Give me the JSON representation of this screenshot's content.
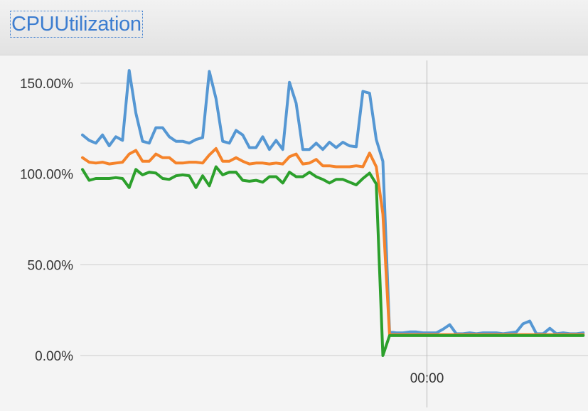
{
  "header": {
    "title": "CPUUtilization"
  },
  "colors": {
    "title_link": "#3c7dd0",
    "grid": "#cccccc",
    "background": "#f4f4f4"
  },
  "chart_data": {
    "type": "line",
    "title": "CPUUtilization",
    "xlabel": "",
    "ylabel": "",
    "ylim": [
      0,
      150
    ],
    "y_ticks": [
      {
        "value": 150,
        "label": "150.00%"
      },
      {
        "value": 100,
        "label": "100.00%"
      },
      {
        "value": 50,
        "label": "50.00%"
      },
      {
        "value": 0,
        "label": "0.00%"
      }
    ],
    "x_ticks": [
      {
        "index": 50,
        "label": "00:00"
      }
    ],
    "grid": true,
    "legend": "none",
    "x_count": 76,
    "series": [
      {
        "color": "#5597d3",
        "values": [
          121.5,
          118.5,
          117,
          121.5,
          115.5,
          120.5,
          118.5,
          157,
          133.5,
          118,
          117,
          125.5,
          125.5,
          120.5,
          118,
          118,
          117,
          119,
          120,
          156.5,
          141.5,
          118,
          117,
          124,
          121.5,
          114.5,
          114.5,
          120.5,
          113.5,
          118.5,
          113.5,
          150.5,
          139,
          113.5,
          113.5,
          117,
          113.5,
          117.5,
          114.5,
          117.5,
          115.5,
          115,
          145.5,
          144.5,
          119,
          107,
          13,
          12.5,
          12.5,
          13,
          13,
          12.5,
          12.5,
          12.5,
          14.5,
          17,
          12,
          12,
          12.5,
          12,
          12.5,
          12.5,
          12.5,
          12,
          12.5,
          13,
          17.5,
          19,
          12,
          12,
          15,
          12,
          12.5,
          12,
          12,
          12.5
        ]
      },
      {
        "color": "#f5832a",
        "values": [
          109,
          106.5,
          106,
          106.5,
          105.5,
          106,
          106.5,
          111,
          113,
          107,
          107,
          111,
          109,
          109,
          106,
          106,
          106.5,
          106.5,
          106,
          110.5,
          114,
          107,
          107,
          109,
          107,
          105.5,
          106,
          106,
          105.5,
          106,
          105.5,
          109.5,
          111,
          105.5,
          106,
          108,
          104.5,
          104.5,
          104,
          104,
          104,
          104.5,
          104,
          111.5,
          104,
          78,
          11.5,
          11.5,
          11.5,
          11.5,
          11.5,
          11.5,
          11.5,
          11.5,
          11.5,
          11.5,
          11.5,
          11.5,
          11.5,
          11.5,
          11.5,
          11.5,
          11.5,
          11.5,
          11.5,
          11.5,
          11.5,
          11.5,
          11.5,
          11.5,
          11.5,
          11.5,
          11.5,
          11.5,
          11.5,
          11.5
        ]
      },
      {
        "color": "#2ca02c",
        "values": [
          102.5,
          96.5,
          97.5,
          97.5,
          97.5,
          98,
          97.5,
          92.5,
          102.5,
          99.5,
          101,
          100.5,
          97.5,
          97,
          99,
          99.5,
          99,
          92.5,
          99,
          93.5,
          104,
          99.5,
          101,
          101,
          96.5,
          96,
          96.5,
          95.5,
          98.5,
          98.5,
          95,
          101,
          98.5,
          98.5,
          101,
          98.5,
          97,
          95,
          97,
          97,
          95.5,
          94,
          97.5,
          100.5,
          94.5,
          0,
          11,
          11,
          11,
          11,
          11,
          11,
          11,
          11,
          11,
          11,
          11,
          11,
          11,
          11,
          11,
          11,
          11,
          11,
          11,
          11,
          11,
          11,
          11,
          11,
          11,
          11,
          11,
          11,
          11,
          11
        ]
      }
    ]
  }
}
